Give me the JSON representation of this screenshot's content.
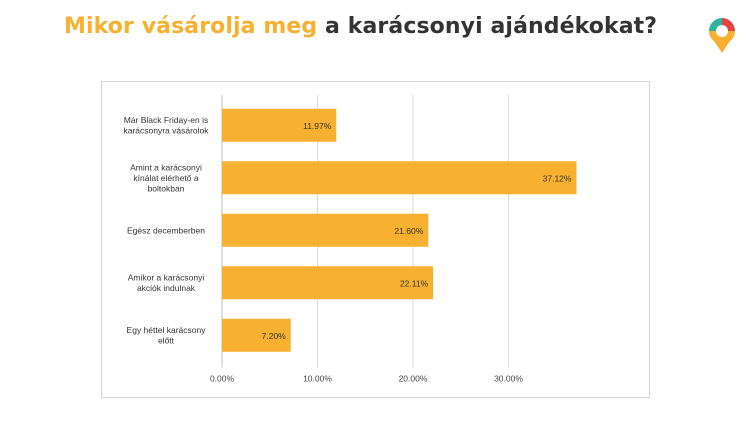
{
  "title": {
    "highlight": "Mikor vásárolja meg",
    "rest": "a karácsonyi ajándékokat?"
  },
  "colors": {
    "accent": "#F7B030",
    "bar": "#F7B030",
    "title_text": "#333333",
    "grid": "#d9d9d9"
  },
  "logo": {
    "icon": "map-pin-logo-icon"
  },
  "chart_data": {
    "type": "bar",
    "orientation": "horizontal",
    "categories": [
      [
        "Már Black Friday-en is",
        "karácsonyra vásárolok"
      ],
      [
        "Amint a karácsonyi",
        "kínálat elérhető a",
        "boltokban"
      ],
      [
        "Egész decemberben"
      ],
      [
        "Amikor a karácsonyi",
        "akciók indulnak"
      ],
      [
        "Egy héttel karácsony",
        "előtt"
      ]
    ],
    "values": [
      11.97,
      37.12,
      21.6,
      22.11,
      7.2
    ],
    "data_labels": [
      "11.97%",
      "37.12%",
      "21.60%",
      "22.11%",
      "7.20%"
    ],
    "xticks": [
      0,
      10,
      20,
      30
    ],
    "xtick_labels": [
      "0.00%",
      "10.00%",
      "20.00%",
      "30.00%"
    ],
    "xlim": [
      0,
      40
    ],
    "grid": "vertical",
    "xlabel": "",
    "ylabel": ""
  }
}
